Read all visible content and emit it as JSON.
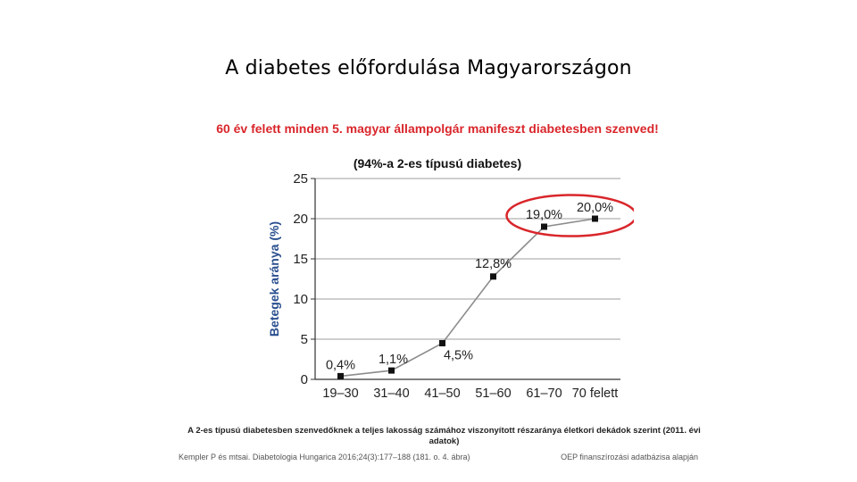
{
  "slide": {
    "title": "A diabetes előfordulása Magyarországon"
  },
  "chart_data": {
    "type": "line",
    "title": "60 év felett minden 5. magyar állampolgár manifeszt diabetesben szenved!",
    "subtitle": "(94%-a 2-es típusú diabetes)",
    "xlabel": "",
    "ylabel": "Betegek aránya (%)",
    "categories": [
      "19–30",
      "31–40",
      "41–50",
      "51–60",
      "61–70",
      "70 felett"
    ],
    "values": [
      0.4,
      1.1,
      4.5,
      12.8,
      19.0,
      20.0
    ],
    "data_labels": [
      "0,4%",
      "1,1%",
      "4,5%",
      "12,8%",
      "19,0%",
      "20,0%"
    ],
    "ylim": [
      0,
      25
    ],
    "yticks": [
      0,
      5,
      10,
      15,
      20,
      25
    ],
    "grid": true,
    "line_color": "#8c8c8c",
    "marker_color": "#111111",
    "grid_color": "#bdbdbd",
    "highlight_color": "#d9262b",
    "highlight_points": [
      4,
      5
    ]
  },
  "caption": "A 2-es típusú diabetesben szenvedőknek a teljes lakosság számához viszonyított részaránya életkori dekádok szerint (2011. évi adatok)",
  "footer": {
    "source_left": "Kempler P és mtsai. Diabetologia Hungarica 2016;24(3):177–188 (181. o. 4. ábra)",
    "source_right": "OEP finanszírozási adatbázisa alapján"
  }
}
